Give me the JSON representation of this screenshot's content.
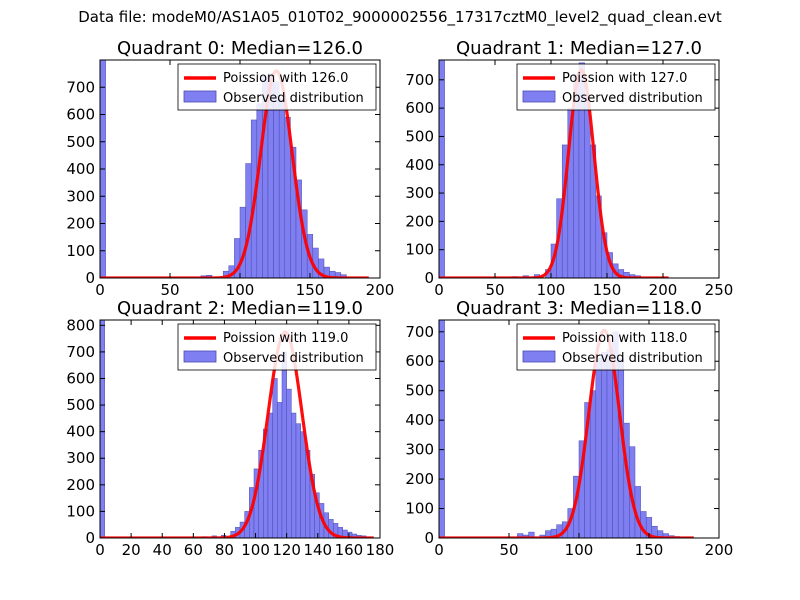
{
  "suptitle": "Data file: modeM0/AS1A05_010T02_9000002556_17317cztM0_level2_quad_clean.evt",
  "colors": {
    "bar_fill": "#7f7ff2",
    "bar_edge": "#4a4ab0",
    "curve": "#ff0000",
    "legend_curve": "#ff0000"
  },
  "chart_data": [
    {
      "type": "bar",
      "title": "Quadrant 0: Median=126.0",
      "xlim": [
        0,
        200
      ],
      "ylim": [
        0,
        800
      ],
      "xticks": [
        0,
        50,
        100,
        150,
        200
      ],
      "yticks": [
        0,
        100,
        200,
        300,
        400,
        500,
        600,
        700
      ],
      "bin_width": 4,
      "bin_starts": [
        0,
        72,
        76,
        88,
        92,
        96,
        100,
        104,
        108,
        112,
        116,
        120,
        124,
        128,
        132,
        136,
        140,
        144,
        148,
        152,
        156,
        160,
        164,
        168,
        172
      ],
      "values": [
        800,
        8,
        10,
        25,
        45,
        145,
        260,
        420,
        580,
        640,
        740,
        750,
        720,
        660,
        590,
        480,
        360,
        250,
        160,
        110,
        70,
        40,
        25,
        20,
        12
      ],
      "curve": {
        "label": "Poission with 126.0",
        "mean": 126.0,
        "peak": 760,
        "sigma": 11.2,
        "x_range": [
          0,
          192
        ]
      },
      "legend": {
        "curve_label": "Poission with 126.0",
        "bar_label": "Observed distribution",
        "placement": "top-right"
      }
    },
    {
      "type": "bar",
      "title": "Quadrant 1: Median=127.0",
      "xlim": [
        0,
        250
      ],
      "ylim": [
        0,
        770
      ],
      "xticks": [
        0,
        50,
        100,
        150,
        200,
        250
      ],
      "yticks": [
        0,
        100,
        200,
        300,
        400,
        500,
        600,
        700
      ],
      "bin_width": 5,
      "bin_starts": [
        0,
        65,
        75,
        85,
        95,
        100,
        105,
        110,
        115,
        120,
        125,
        130,
        135,
        140,
        145,
        150,
        155,
        160,
        165,
        170,
        175
      ],
      "values": [
        770,
        5,
        8,
        12,
        30,
        120,
        280,
        470,
        600,
        720,
        760,
        640,
        470,
        290,
        160,
        90,
        50,
        30,
        20,
        12,
        8
      ],
      "curve": {
        "label": "Poission with 127.0",
        "mean": 127.0,
        "peak": 735,
        "sigma": 11.3,
        "x_range": [
          0,
          205
        ]
      },
      "legend": {
        "curve_label": "Poission with 127.0",
        "bar_label": "Observed distribution",
        "placement": "top-right"
      }
    },
    {
      "type": "bar",
      "title": "Quadrant 2: Median=119.0",
      "xlim": [
        0,
        180
      ],
      "ylim": [
        0,
        820
      ],
      "xticks": [
        0,
        20,
        40,
        60,
        80,
        100,
        120,
        140,
        160,
        180
      ],
      "xtick_labels": [
        "0",
        "20",
        "40",
        "60",
        "80",
        "100",
        "120",
        "140",
        "160",
        "180"
      ],
      "yticks": [
        0,
        100,
        200,
        300,
        400,
        500,
        600,
        700,
        800
      ],
      "bin_width": 3,
      "bin_starts": [
        0,
        66,
        72,
        78,
        84,
        87,
        90,
        93,
        96,
        99,
        102,
        105,
        108,
        111,
        114,
        117,
        120,
        123,
        126,
        129,
        132,
        135,
        138,
        141,
        144,
        147,
        150,
        153,
        156,
        159,
        162,
        165,
        168,
        171
      ],
      "values": [
        820,
        5,
        8,
        10,
        25,
        40,
        60,
        100,
        190,
        260,
        330,
        410,
        470,
        600,
        510,
        700,
        560,
        470,
        430,
        400,
        330,
        240,
        170,
        130,
        95,
        70,
        55,
        40,
        30,
        22,
        15,
        10,
        8,
        4
      ],
      "curve": {
        "label": "Poission with 119.0",
        "mean": 119.0,
        "peak": 775,
        "sigma": 10.9,
        "x_range": [
          0,
          176
        ]
      },
      "legend": {
        "curve_label": "Poission with 119.0",
        "bar_label": "Observed distribution",
        "placement": "top-right"
      }
    },
    {
      "type": "bar",
      "title": "Quadrant 3: Median=118.0",
      "xlim": [
        0,
        200
      ],
      "ylim": [
        0,
        740
      ],
      "xticks": [
        0,
        50,
        100,
        150,
        200
      ],
      "yticks": [
        0,
        100,
        200,
        300,
        400,
        500,
        600,
        700
      ],
      "bin_width": 4,
      "bin_starts": [
        0,
        56,
        60,
        64,
        72,
        76,
        80,
        84,
        88,
        92,
        96,
        100,
        104,
        108,
        112,
        116,
        120,
        124,
        128,
        132,
        136,
        140,
        144,
        148,
        152,
        156,
        160,
        164,
        168
      ],
      "values": [
        740,
        15,
        10,
        20,
        10,
        25,
        30,
        45,
        55,
        100,
        210,
        330,
        460,
        500,
        610,
        630,
        640,
        700,
        610,
        390,
        310,
        175,
        90,
        70,
        40,
        25,
        15,
        8,
        5
      ],
      "curve": {
        "label": "Poission with 118.0",
        "mean": 118.0,
        "peak": 705,
        "sigma": 10.9,
        "x_range": [
          0,
          182
        ]
      },
      "legend": {
        "curve_label": "Poission with 118.0",
        "bar_label": "Observed distribution",
        "placement": "top-right"
      }
    }
  ]
}
